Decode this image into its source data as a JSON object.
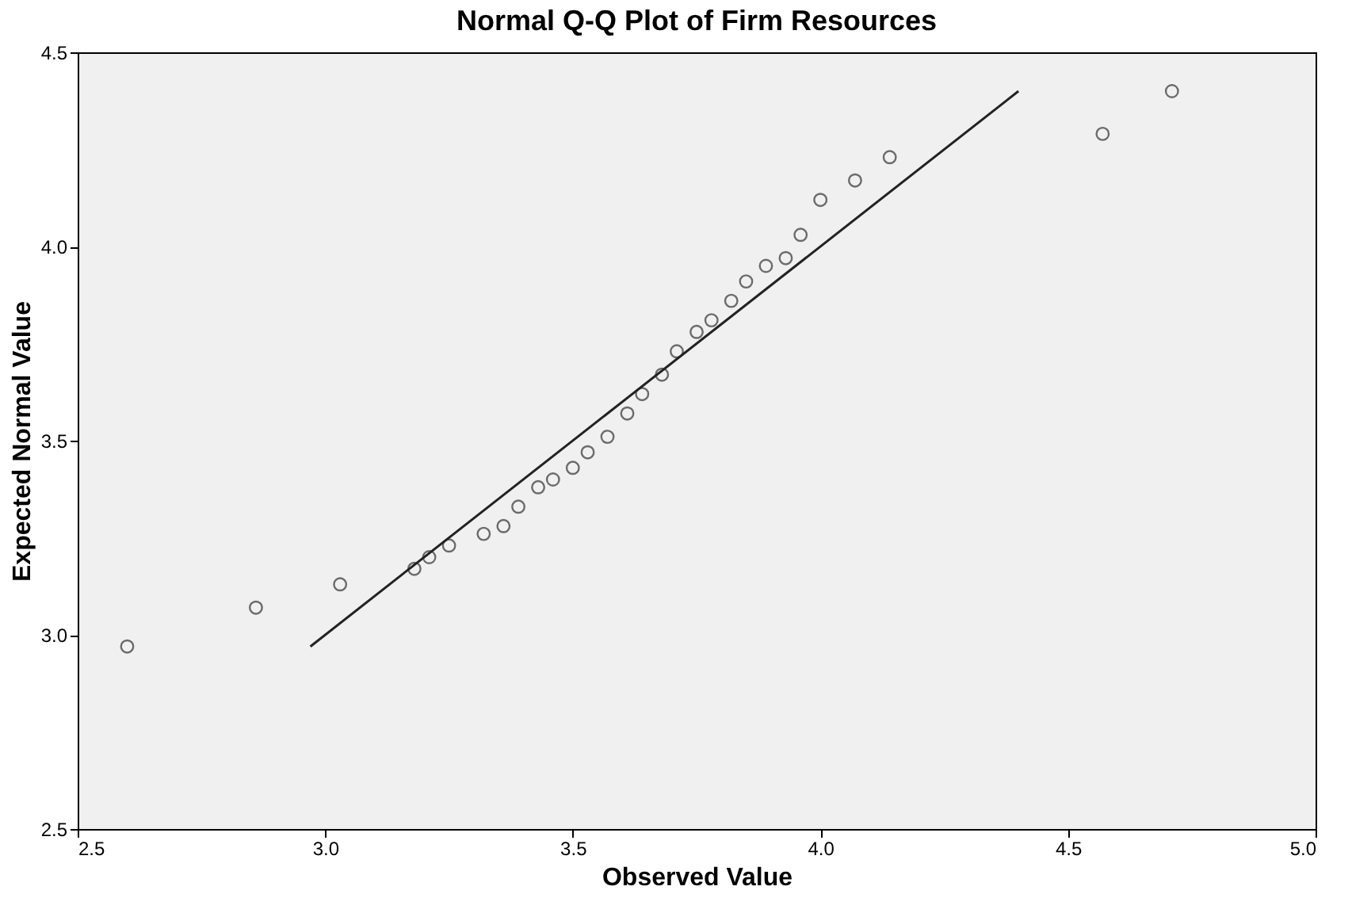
{
  "chart_data": {
    "type": "scatter",
    "title": "Normal Q-Q Plot of Firm Resources",
    "xlabel": "Observed Value",
    "ylabel": "Expected Normal Value",
    "xlim": [
      2.5,
      5.0
    ],
    "ylim": [
      2.5,
      4.5
    ],
    "xticks": [
      2.5,
      {
        "value": 3,
        "label": "3.0"
      },
      3.5,
      {
        "value": 4,
        "label": "4.0"
      },
      4.5,
      {
        "value": 5,
        "label": "5.0"
      }
    ],
    "yticks": [
      2.5,
      {
        "value": 3,
        "label": "3.0"
      },
      3.5,
      {
        "value": 4,
        "label": "4.0"
      },
      4.5
    ],
    "grid": false,
    "series": [
      {
        "marker": "circle",
        "color": "#333333",
        "x": [
          2.6,
          2.86,
          3.03,
          3.18,
          3.21,
          3.25,
          3.32,
          3.36,
          3.39,
          3.43,
          3.46,
          3.5,
          3.53,
          3.57,
          3.61,
          3.64,
          3.68,
          3.71,
          3.75,
          3.78,
          3.82,
          3.85,
          3.89,
          3.93,
          3.96,
          4.0,
          4.07,
          4.14,
          4.57,
          4.71
        ],
        "values": [
          2.97,
          3.07,
          3.13,
          3.17,
          3.2,
          3.23,
          3.26,
          3.28,
          3.33,
          3.38,
          3.4,
          3.43,
          3.47,
          3.51,
          3.57,
          3.62,
          3.67,
          3.73,
          3.78,
          3.81,
          3.86,
          3.91,
          3.95,
          3.97,
          4.03,
          4.12,
          4.17,
          4.23,
          4.29,
          4.4
        ]
      },
      {
        "type": "line",
        "color": "#222222",
        "line_style": "solid",
        "x": [
          2.97,
          4.4
        ],
        "values": [
          2.97,
          4.4
        ]
      }
    ]
  }
}
